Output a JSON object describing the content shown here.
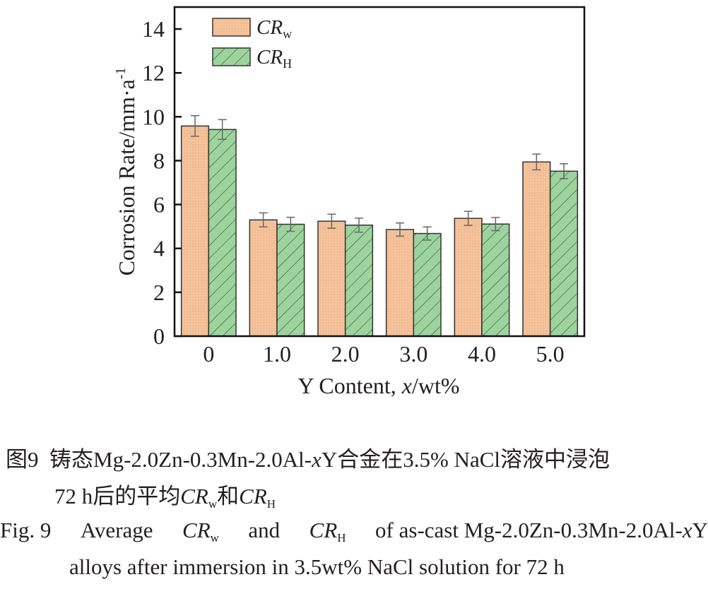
{
  "chart_data": {
    "type": "bar",
    "title": "",
    "xlabel": "Y Content, x/wt%",
    "xlabel_parts": {
      "pre": "Y Content, ",
      "italic": "x",
      "post": "/wt%"
    },
    "ylabel": "Corrosion Rate/mm·a-1",
    "ylabel_parts": {
      "main": "Corrosion Rate/mm·a",
      "sup": "-1"
    },
    "ylim": [
      0,
      15
    ],
    "yticks": [
      0,
      2,
      4,
      6,
      8,
      10,
      12,
      14
    ],
    "categories": [
      "0",
      "1.0",
      "2.0",
      "3.0",
      "4.0",
      "5.0"
    ],
    "series": [
      {
        "name": "CRw",
        "label_main": "CR",
        "label_sub": "w",
        "color": "#f5c29a",
        "pattern": "dots",
        "values": [
          9.58,
          5.3,
          5.24,
          4.86,
          5.37,
          7.94
        ],
        "errors": [
          0.47,
          0.32,
          0.32,
          0.3,
          0.32,
          0.36
        ]
      },
      {
        "name": "CRH",
        "label_main": "CR",
        "label_sub": "H",
        "color": "#9dd49e",
        "pattern": "hatch",
        "values": [
          9.42,
          5.1,
          5.06,
          4.68,
          5.11,
          7.52
        ],
        "errors": [
          0.45,
          0.32,
          0.32,
          0.3,
          0.3,
          0.34
        ]
      }
    ],
    "legend": "top-left",
    "grid": false
  },
  "caption": {
    "cn_line1": {
      "fig": "图9",
      "text": "铸态Mg-2.0Zn-0.3Mn-2.0Al-",
      "x": "x",
      "text2": "Y合金在3.5% NaCl溶液中浸泡"
    },
    "cn_line2": {
      "pre": "72 h后的平均",
      "cr1": "CR",
      "sub1": "w",
      "mid": "和",
      "cr2": "CR",
      "sub2": "H"
    },
    "en_line1": {
      "fig": "Fig. 9",
      "pre": "Average",
      "cr1": "CR",
      "sub1": "w",
      "mid": "and",
      "cr2": "CR",
      "sub2": "H",
      "post": "of as-cast Mg-2.0Zn-0.3Mn-2.0Al-",
      "x": "x",
      "end": "Y"
    },
    "en_line2": "alloys after immersion in 3.5wt% NaCl solution for 72 h"
  }
}
